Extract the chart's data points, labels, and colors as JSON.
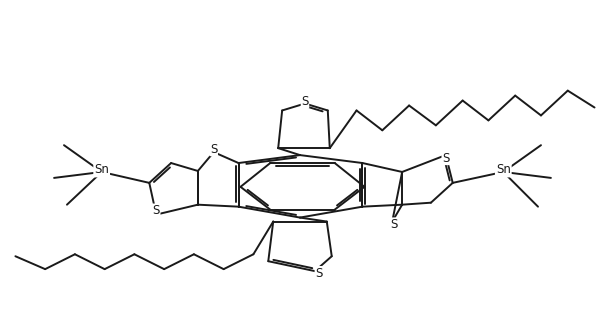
{
  "bg_color": "#ffffff",
  "line_color": "#1a1a1a",
  "lw": 1.4,
  "font_size": 8.5,
  "figsize": [
    6.02,
    3.33
  ],
  "dpi": 100,
  "xlim": [
    0.0,
    6.02
  ],
  "ylim": [
    0.0,
    3.33
  ]
}
